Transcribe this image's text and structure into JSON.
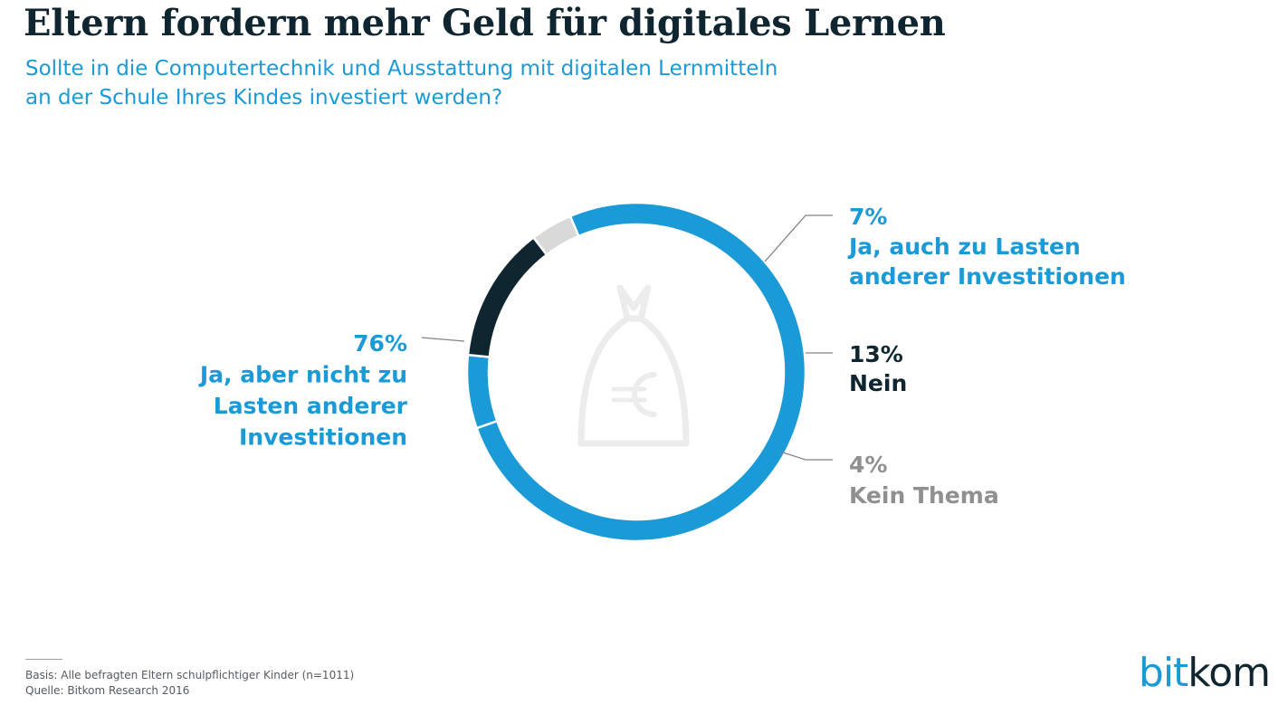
{
  "header": {
    "title": "Eltern fordern mehr Geld für digitales Lernen",
    "subtitle_lines": [
      "Sollte in die Computertechnik und Ausstattung mit digitalen Lernmitteln",
      "an der Schule Ihres Kindes investiert werden?"
    ]
  },
  "center_icon": "money-bag-euro-icon",
  "chart_data": {
    "type": "pie",
    "donut": true,
    "title": "Eltern fordern mehr Geld für digitales Lernen",
    "slices": [
      {
        "label_lines": [
          "Ja, aber nicht zu",
          "Lasten anderer",
          "Investitionen"
        ],
        "value": 76,
        "value_label": "76%",
        "color": "#1a9ad6",
        "label_color": "#1a9ad6"
      },
      {
        "label_lines": [
          "Ja, auch zu Lasten",
          "anderer Investitionen"
        ],
        "value": 7,
        "value_label": "7%",
        "color": "#1a9ad6",
        "label_color": "#1a9ad6"
      },
      {
        "label_lines": [
          "Nein"
        ],
        "value": 13,
        "value_label": "13%",
        "color": "#0f2630",
        "label_color": "#0f2630"
      },
      {
        "label_lines": [
          "Kein Thema"
        ],
        "value": 4,
        "value_label": "4%",
        "color": "#d9d9d9",
        "label_color": "#909090"
      }
    ]
  },
  "footer": {
    "basis": "Basis: Alle befragten Eltern schulpflichtiger Kinder (n=1011)",
    "source": "Quelle: Bitkom Research 2016"
  },
  "logo": {
    "part1": "bit",
    "part2": "kom"
  }
}
